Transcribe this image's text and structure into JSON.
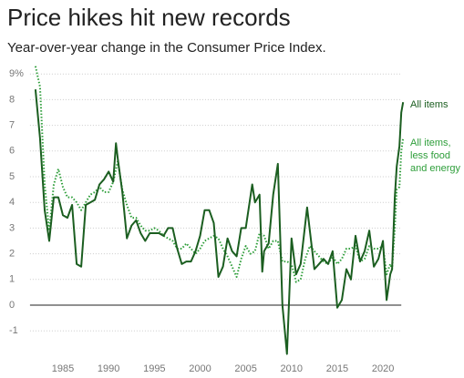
{
  "chart_data": {
    "type": "line",
    "title": "Price hikes hit new records",
    "subtitle": "Year-over-year change in the Consumer Price Index.",
    "xlim": [
      1981,
      2023
    ],
    "xticks": [
      1985,
      1990,
      1995,
      2000,
      2005,
      2010,
      2015,
      2020
    ],
    "ylim": [
      -2,
      9.5
    ],
    "yticks": [
      -1,
      0,
      1,
      2,
      3,
      4,
      5,
      6,
      7,
      8,
      {
        "value": 9,
        "label": "9%"
      }
    ],
    "grid": true,
    "series": [
      {
        "name": "All items",
        "color": "#1b5e20",
        "style": "solid",
        "x": [
          1982,
          1982.5,
          1983,
          1983.5,
          1984,
          1984.5,
          1985,
          1985.5,
          1986,
          1986.5,
          1987,
          1987.5,
          1988,
          1988.5,
          1989,
          1989.5,
          1990,
          1990.5,
          1990.8,
          1991,
          1991.5,
          1992,
          1992.5,
          1993,
          1993.5,
          1994,
          1994.5,
          1995,
          1995.5,
          1996,
          1996.5,
          1997,
          1997.5,
          1998,
          1998.5,
          1999,
          1999.5,
          2000,
          2000.5,
          2001,
          2001.5,
          2002,
          2002.5,
          2003,
          2003.5,
          2004,
          2004.5,
          2005,
          2005.7,
          2006,
          2006.5,
          2006.8,
          2007,
          2007.5,
          2008,
          2008.5,
          2009,
          2009.5,
          2010,
          2010.5,
          2011,
          2011.7,
          2012,
          2012.5,
          2013,
          2013.5,
          2014,
          2014.5,
          2015,
          2015.5,
          2016,
          2016.5,
          2017,
          2017.5,
          2018,
          2018.5,
          2019,
          2019.5,
          2020,
          2020.4,
          2020.8,
          2021,
          2021.3,
          2021.5,
          2021.8,
          2022,
          2022.2
        ],
        "values": [
          8.4,
          6.5,
          3.7,
          2.5,
          4.2,
          4.2,
          3.5,
          3.4,
          3.9,
          1.6,
          1.5,
          3.9,
          4.0,
          4.1,
          4.7,
          4.9,
          5.2,
          4.8,
          6.3,
          5.7,
          4.4,
          2.6,
          3.1,
          3.3,
          2.8,
          2.5,
          2.8,
          2.8,
          2.8,
          2.7,
          3.0,
          3.0,
          2.2,
          1.6,
          1.7,
          1.7,
          2.1,
          2.7,
          3.7,
          3.7,
          3.2,
          1.1,
          1.5,
          2.6,
          2.1,
          1.9,
          3.0,
          3.0,
          4.7,
          4.0,
          4.3,
          1.3,
          2.1,
          2.4,
          4.3,
          5.5,
          0.0,
          -1.9,
          2.6,
          1.2,
          1.6,
          3.8,
          2.9,
          1.4,
          1.6,
          1.8,
          1.6,
          2.1,
          -0.1,
          0.2,
          1.4,
          1.0,
          2.7,
          1.7,
          2.1,
          2.9,
          1.5,
          1.8,
          2.5,
          0.2,
          1.2,
          1.4,
          4.2,
          5.4,
          6.2,
          7.5,
          7.9
        ]
      },
      {
        "name": "All items, less food and energy",
        "color": "#2e9e3a",
        "style": "dotted",
        "x": [
          1982,
          1982.5,
          1983,
          1983.5,
          1984,
          1984.5,
          1985,
          1985.5,
          1986,
          1986.5,
          1987,
          1987.5,
          1988,
          1988.5,
          1989,
          1989.5,
          1990,
          1990.5,
          1991,
          1991.5,
          1992,
          1992.5,
          1993,
          1993.5,
          1994,
          1994.5,
          1995,
          1995.5,
          1996,
          1996.5,
          1997,
          1997.5,
          1998,
          1998.5,
          1999,
          1999.5,
          2000,
          2000.5,
          2001,
          2001.5,
          2002,
          2002.5,
          2003,
          2003.5,
          2004,
          2004.5,
          2005,
          2005.5,
          2006,
          2006.5,
          2007,
          2007.5,
          2008,
          2008.5,
          2009,
          2009.5,
          2010,
          2010.5,
          2011,
          2011.5,
          2012,
          2012.5,
          2013,
          2013.5,
          2014,
          2014.5,
          2015,
          2015.5,
          2016,
          2016.5,
          2017,
          2017.5,
          2018,
          2018.5,
          2019,
          2019.5,
          2020,
          2020.4,
          2020.8,
          2021,
          2021.3,
          2021.5,
          2021.8,
          2022,
          2022.2
        ],
        "values": [
          9.3,
          8.5,
          4.7,
          2.9,
          4.7,
          5.3,
          4.6,
          4.2,
          4.2,
          4.0,
          3.7,
          4.0,
          4.3,
          4.4,
          4.6,
          4.4,
          4.4,
          4.8,
          5.6,
          4.5,
          3.9,
          3.4,
          3.4,
          3.1,
          2.9,
          2.9,
          3.0,
          2.9,
          2.7,
          2.6,
          2.5,
          2.2,
          2.2,
          2.4,
          2.2,
          2.0,
          2.2,
          2.5,
          2.6,
          2.7,
          2.6,
          2.2,
          1.9,
          1.5,
          1.1,
          1.8,
          2.3,
          2.0,
          2.1,
          2.8,
          2.7,
          2.2,
          2.5,
          2.5,
          1.7,
          1.7,
          1.6,
          0.9,
          1.0,
          1.8,
          2.3,
          2.1,
          1.9,
          1.7,
          1.6,
          1.9,
          1.6,
          1.8,
          2.2,
          2.2,
          2.3,
          1.7,
          1.8,
          2.3,
          2.2,
          2.2,
          2.3,
          1.2,
          1.6,
          1.4,
          3.0,
          4.5,
          4.6,
          6.0,
          6.5
        ]
      }
    ]
  }
}
